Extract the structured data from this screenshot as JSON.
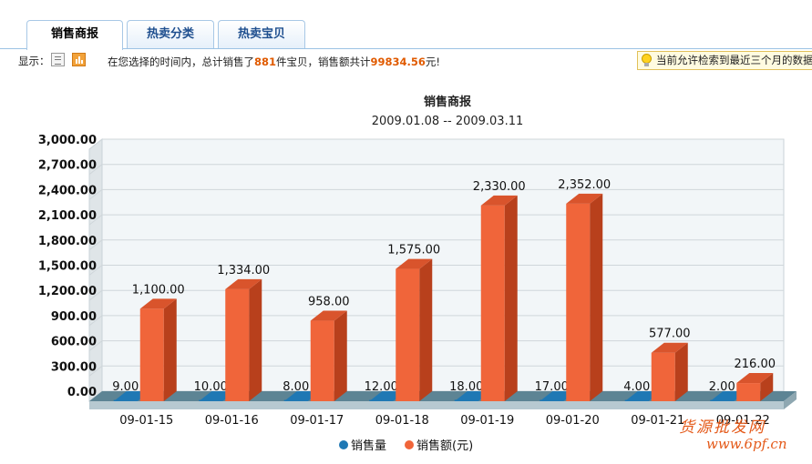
{
  "tabs": [
    {
      "label": "销售商报",
      "active": true
    },
    {
      "label": "热卖分类",
      "active": false
    },
    {
      "label": "热卖宝贝",
      "active": false
    }
  ],
  "toolbar": {
    "show_label": "显示：",
    "summary_prefix": "在您选择的时间内，总计销售了",
    "total_items": "881",
    "summary_mid": "件宝贝，销售额共计",
    "total_amount": "99834.56",
    "summary_suffix": "元!",
    "notice": "当前允许检索到最近三个月的数据"
  },
  "watermark": {
    "line1": "货源批发网",
    "line2": "www.6pf.cn"
  },
  "colors": {
    "quantity": "#1f78b4",
    "amount": "#f0653a",
    "amount_side": "#b8401c",
    "amount_top": "#d9542c"
  },
  "chart_data": {
    "type": "bar",
    "title": "销售商报",
    "subtitle": "2009.01.08 -- 2009.03.11",
    "categories": [
      "09-01-15",
      "09-01-16",
      "09-01-17",
      "09-01-18",
      "09-01-19",
      "09-01-20",
      "09-01-21",
      "09-01-22"
    ],
    "category_labels": [
      "09-01-15",
      "09-01-16",
      "09-01-17",
      "09-01-18",
      "09-01-19",
      "09-01-20",
      "09-01-21",
      "09-01-22"
    ],
    "series": [
      {
        "name": "销售量",
        "values": [
          9,
          10,
          8,
          12,
          18,
          17,
          4,
          2
        ],
        "labels": [
          "9.00",
          "10.00",
          "8.00",
          "12.00",
          "18.00",
          "17.00",
          "4.00",
          "2.00"
        ]
      },
      {
        "name": "销售额(元)",
        "values": [
          1100,
          1334,
          958,
          1575,
          2330,
          2352,
          577,
          216
        ],
        "labels": [
          "1,100.00",
          "1,334.00",
          "958.00",
          "1,575.00",
          "2,330.00",
          "2,352.00",
          "577.00",
          "216.00"
        ]
      }
    ],
    "yticks": [
      "0.00",
      "300.00",
      "600.00",
      "900.00",
      "1,200.00",
      "1,500.00",
      "1,800.00",
      "2,100.00",
      "2,400.00",
      "2,700.00",
      "3,000.00"
    ],
    "ylim": [
      0,
      3000
    ],
    "ystep": 300,
    "legend_position": "bottom",
    "grid": true
  }
}
